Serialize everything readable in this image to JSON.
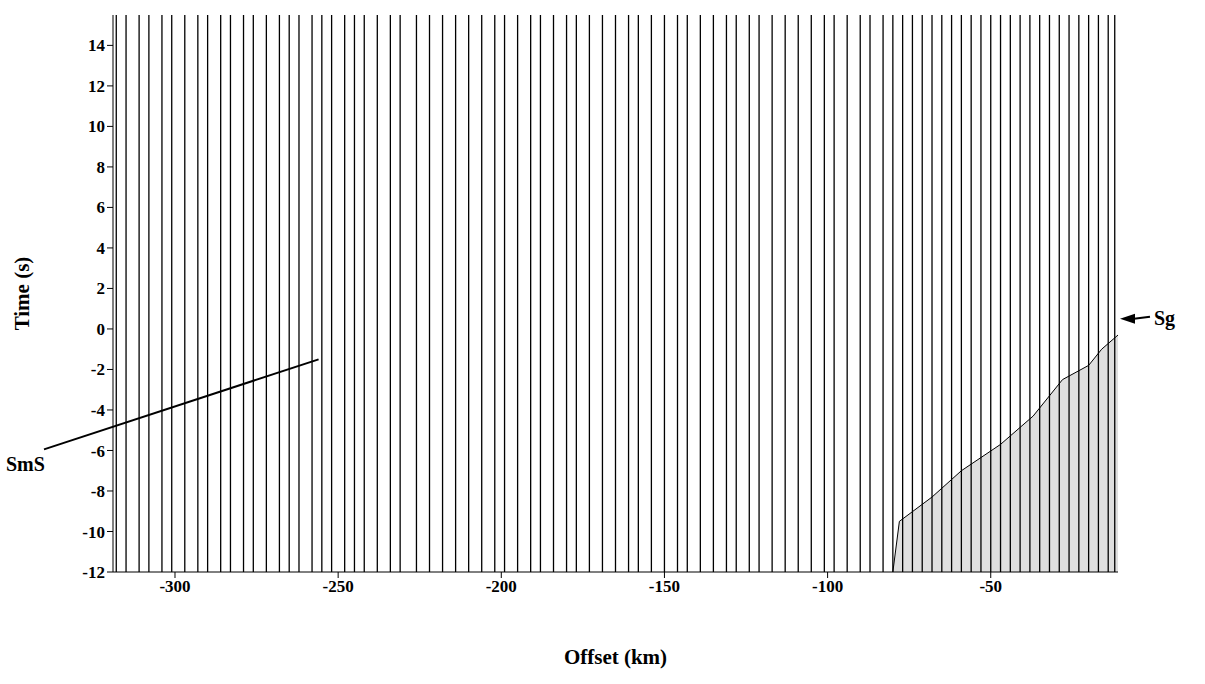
{
  "chart_data": {
    "type": "record_section",
    "xlabel": "Offset (km)",
    "ylabel": "Time (s)",
    "xlim": [
      -319,
      -11
    ],
    "ylim": [
      -12,
      15.5
    ],
    "xticks": [
      -300,
      -250,
      -200,
      -150,
      -100,
      -50
    ],
    "yticks": [
      -12,
      -10,
      -8,
      -6,
      -4,
      -2,
      0,
      2,
      4,
      6,
      8,
      10,
      12,
      14
    ],
    "traces": {
      "color": "#000000",
      "x": [
        -318,
        -315,
        -311,
        -308,
        -304,
        -301,
        -297,
        -293,
        -290,
        -286,
        -283,
        -279,
        -276,
        -272,
        -268,
        -265,
        -262,
        -258,
        -255,
        -252,
        -248,
        -245,
        -242,
        -238,
        -234,
        -231,
        -226,
        -222,
        -218,
        -214,
        -210,
        -206,
        -202,
        -199,
        -195,
        -191,
        -188,
        -184,
        -180,
        -177,
        -173,
        -169,
        -165,
        -161,
        -158,
        -154,
        -150,
        -146,
        -143,
        -139,
        -135,
        -131,
        -128,
        -124,
        -121,
        -117,
        -113,
        -109,
        -105,
        -101,
        -98,
        -94,
        -90,
        -87,
        -83,
        -80,
        -77,
        -74,
        -71,
        -68,
        -65,
        -62,
        -59,
        -56,
        -53,
        -50,
        -47,
        -44,
        -41,
        -38,
        -35,
        -32,
        -29,
        -26,
        -23,
        -20,
        -17,
        -14,
        -12
      ]
    },
    "series": [
      {
        "type": "area",
        "color": "#d9d9d9",
        "x": [
          -80,
          -78,
          -68,
          -59,
          -47,
          -37,
          -28,
          -20,
          -16,
          -11
        ],
        "values": [
          -12,
          -9.5,
          -8.3,
          -7,
          -5.7,
          -4.3,
          -2.5,
          -1.8,
          -1,
          -0.3
        ]
      }
    ],
    "annotations": [
      {
        "text": "SmS",
        "x": -256,
        "y": -1.5
      },
      {
        "text": "Sg",
        "x": -11,
        "y": 0.5
      }
    ]
  }
}
